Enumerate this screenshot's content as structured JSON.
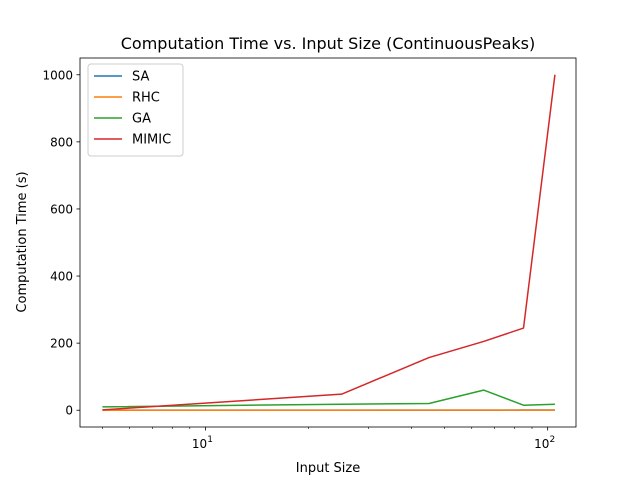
{
  "chart_data": {
    "type": "line",
    "title": "Computation Time vs. Input Size (ContinuousPeaks)",
    "xlabel": "Input Size",
    "ylabel": "Computation Time (s)",
    "xscale": "log",
    "xlim": [
      4.3,
      121
    ],
    "ylim": [
      -50,
      1050
    ],
    "x": [
      5,
      25,
      45,
      65,
      85,
      105
    ],
    "x_ticks": [
      {
        "value": 10,
        "label": "10",
        "exponent": "1"
      },
      {
        "value": 100,
        "label": "10",
        "exponent": "2"
      }
    ],
    "y_ticks": [
      0,
      200,
      400,
      600,
      800,
      1000
    ],
    "grid": false,
    "legend_position": "top-left",
    "series": [
      {
        "name": "SA",
        "color": "#1f77b4",
        "values": [
          0.1,
          0.2,
          0.3,
          0.4,
          0.5,
          0.6
        ]
      },
      {
        "name": "RHC",
        "color": "#ff7f0e",
        "values": [
          0.05,
          0.1,
          0.15,
          0.2,
          0.25,
          0.3
        ]
      },
      {
        "name": "GA",
        "color": "#2ca02c",
        "values": [
          10,
          18,
          20,
          60,
          15,
          18
        ]
      },
      {
        "name": "MIMIC",
        "color": "#d62728",
        "values": [
          1,
          48,
          157,
          205,
          245,
          1000
        ]
      }
    ]
  }
}
